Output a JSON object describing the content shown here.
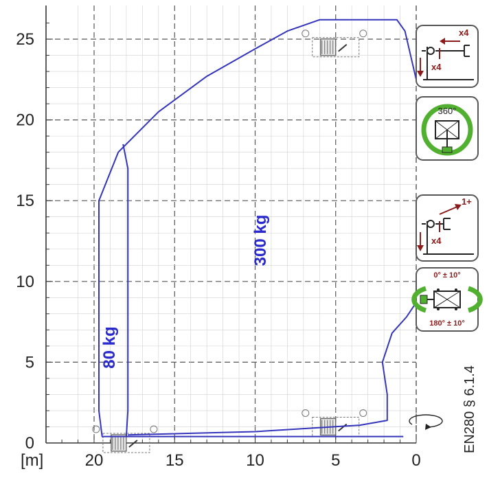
{
  "chart_data": {
    "type": "diagram",
    "x_axis": {
      "unit_label": "[m]",
      "ticks": [
        20,
        15,
        10,
        5,
        0
      ],
      "range": [
        0,
        20
      ],
      "reversed": true
    },
    "y_axis": {
      "ticks": [
        25,
        20,
        15,
        10,
        5,
        0
      ],
      "range": [
        0,
        26.5
      ]
    },
    "grid": true,
    "capacity_labels": [
      "300 kg",
      "80 kg"
    ],
    "standard_label": "EN280 § 6.1.4",
    "working_envelope_outer": [
      {
        "x": 0.8,
        "y": 0.4
      },
      {
        "x": 19.5,
        "y": 0.4
      },
      {
        "x": 19.7,
        "y": 2.0
      },
      {
        "x": 19.7,
        "y": 15.0
      },
      {
        "x": 18.5,
        "y": 18.0
      },
      {
        "x": 16.0,
        "y": 20.5
      },
      {
        "x": 13.0,
        "y": 22.7
      },
      {
        "x": 10.0,
        "y": 24.4
      },
      {
        "x": 8.0,
        "y": 25.5
      },
      {
        "x": 6.0,
        "y": 26.2
      },
      {
        "x": 1.2,
        "y": 26.2
      },
      {
        "x": 0.7,
        "y": 25.5
      },
      {
        "x": 0.0,
        "y": 22.5
      }
    ],
    "working_envelope_inner": [
      {
        "x": 18.0,
        "y": 0.4
      },
      {
        "x": 17.9,
        "y": 2.0
      },
      {
        "x": 17.9,
        "y": 17.0
      },
      {
        "x": 18.2,
        "y": 18.5
      }
    ],
    "working_envelope_lower": [
      {
        "x": 17.9,
        "y": 0.5
      },
      {
        "x": 10.0,
        "y": 0.7
      },
      {
        "x": 3.5,
        "y": 1.1
      },
      {
        "x": 1.8,
        "y": 1.4
      },
      {
        "x": 1.8,
        "y": 3.0
      },
      {
        "x": 2.1,
        "y": 5.0
      },
      {
        "x": 1.5,
        "y": 6.8
      },
      {
        "x": 0.6,
        "y": 7.8
      },
      {
        "x": 0.0,
        "y": 8.7
      }
    ],
    "platform_positions": [
      {
        "x": 5.0,
        "y": 24.5
      },
      {
        "x": 5.0,
        "y": 1.0
      },
      {
        "x": 18.0,
        "y": 0.0
      }
    ],
    "panels": [
      {
        "id": "outriggers-full",
        "label_top": "x4",
        "label_side": "x4"
      },
      {
        "id": "rotation-360",
        "label": "360°"
      },
      {
        "id": "outriggers-partial",
        "label_top": "1+",
        "label_side": "x4"
      },
      {
        "id": "rotation-limited",
        "label_top": "0° ± 10°",
        "label_bottom": "180° ± 10°"
      }
    ],
    "colors": {
      "envelope": "#3333bb",
      "capacity_text": "#2a2acc",
      "panel_red": "#8b1a1a",
      "panel_green": "#52b030",
      "grid": "#444444"
    }
  }
}
